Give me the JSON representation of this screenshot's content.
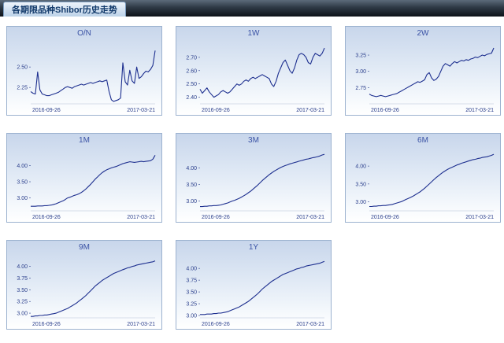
{
  "header": {
    "title": "各期限品种Shibor历史走势"
  },
  "colors": {
    "series": "#1d2f8f",
    "tick": "#2b3f8c",
    "title": "#3b53a5"
  },
  "chart_data": [
    {
      "type": "line",
      "title": "O/N",
      "ylim": [
        2.05,
        2.78
      ],
      "y_ticks": [
        2.25,
        2.5
      ],
      "x_labels": [
        "2016-09-26",
        "2017-03-21"
      ],
      "values": [
        2.2,
        2.18,
        2.17,
        2.44,
        2.22,
        2.17,
        2.16,
        2.15,
        2.15,
        2.16,
        2.17,
        2.18,
        2.19,
        2.21,
        2.23,
        2.25,
        2.26,
        2.25,
        2.24,
        2.26,
        2.27,
        2.28,
        2.29,
        2.28,
        2.29,
        2.3,
        2.31,
        2.3,
        2.31,
        2.32,
        2.33,
        2.32,
        2.33,
        2.34,
        2.2,
        2.1,
        2.08,
        2.09,
        2.1,
        2.12,
        2.55,
        2.32,
        2.28,
        2.46,
        2.33,
        2.3,
        2.5,
        2.36,
        2.38,
        2.42,
        2.45,
        2.44,
        2.47,
        2.52,
        2.7
      ]
    },
    {
      "type": "line",
      "title": "1W",
      "ylim": [
        2.35,
        2.8
      ],
      "y_ticks": [
        2.4,
        2.5,
        2.6,
        2.7
      ],
      "x_labels": [
        "2016-09-26",
        "2017-03-21"
      ],
      "values": [
        2.46,
        2.43,
        2.45,
        2.47,
        2.44,
        2.42,
        2.4,
        2.41,
        2.42,
        2.44,
        2.45,
        2.44,
        2.43,
        2.44,
        2.46,
        2.48,
        2.5,
        2.49,
        2.5,
        2.52,
        2.53,
        2.52,
        2.54,
        2.55,
        2.54,
        2.55,
        2.56,
        2.57,
        2.56,
        2.55,
        2.54,
        2.5,
        2.48,
        2.52,
        2.58,
        2.62,
        2.66,
        2.68,
        2.64,
        2.6,
        2.58,
        2.62,
        2.68,
        2.72,
        2.73,
        2.72,
        2.7,
        2.66,
        2.65,
        2.7,
        2.73,
        2.72,
        2.71,
        2.73,
        2.77
      ]
    },
    {
      "type": "line",
      "title": "2W",
      "ylim": [
        2.5,
        3.42
      ],
      "y_ticks": [
        2.75,
        3.0,
        3.25
      ],
      "x_labels": [
        "2016-09-26",
        "2017-03-21"
      ],
      "values": [
        2.65,
        2.63,
        2.62,
        2.61,
        2.62,
        2.63,
        2.62,
        2.61,
        2.62,
        2.63,
        2.64,
        2.65,
        2.66,
        2.68,
        2.7,
        2.72,
        2.74,
        2.76,
        2.78,
        2.8,
        2.82,
        2.84,
        2.83,
        2.85,
        2.87,
        2.95,
        2.98,
        2.9,
        2.86,
        2.88,
        2.92,
        3.0,
        3.08,
        3.12,
        3.1,
        3.08,
        3.12,
        3.15,
        3.13,
        3.15,
        3.17,
        3.16,
        3.18,
        3.17,
        3.19,
        3.2,
        3.22,
        3.21,
        3.23,
        3.25,
        3.24,
        3.26,
        3.27,
        3.28,
        3.36
      ]
    },
    {
      "type": "line",
      "title": "1M",
      "ylim": [
        2.6,
        4.45
      ],
      "y_ticks": [
        3.0,
        3.5,
        4.0
      ],
      "x_labels": [
        "2016-09-26",
        "2017-03-21"
      ],
      "values": [
        2.74,
        2.74,
        2.74,
        2.75,
        2.75,
        2.75,
        2.76,
        2.76,
        2.77,
        2.78,
        2.8,
        2.82,
        2.85,
        2.88,
        2.91,
        2.95,
        3.0,
        3.02,
        3.05,
        3.08,
        3.1,
        3.13,
        3.17,
        3.22,
        3.28,
        3.35,
        3.42,
        3.5,
        3.58,
        3.65,
        3.72,
        3.78,
        3.83,
        3.87,
        3.9,
        3.93,
        3.95,
        3.97,
        4.0,
        4.03,
        4.06,
        4.08,
        4.1,
        4.12,
        4.11,
        4.1,
        4.11,
        4.12,
        4.13,
        4.12,
        4.13,
        4.14,
        4.15,
        4.2,
        4.32
      ]
    },
    {
      "type": "line",
      "title": "3M",
      "ylim": [
        2.7,
        4.52
      ],
      "y_ticks": [
        3.0,
        3.5,
        4.0
      ],
      "x_labels": [
        "2016-09-26",
        "2017-03-21"
      ],
      "values": [
        2.83,
        2.83,
        2.84,
        2.84,
        2.85,
        2.85,
        2.86,
        2.86,
        2.87,
        2.88,
        2.9,
        2.92,
        2.94,
        2.97,
        3.0,
        3.02,
        3.05,
        3.08,
        3.12,
        3.16,
        3.2,
        3.25,
        3.3,
        3.36,
        3.42,
        3.48,
        3.55,
        3.62,
        3.68,
        3.74,
        3.8,
        3.85,
        3.9,
        3.94,
        3.98,
        4.02,
        4.05,
        4.08,
        4.1,
        4.13,
        4.15,
        4.17,
        4.19,
        4.21,
        4.23,
        4.25,
        4.27,
        4.28,
        4.3,
        4.32,
        4.33,
        4.35,
        4.37,
        4.4,
        4.42
      ]
    },
    {
      "type": "line",
      "title": "6M",
      "ylim": [
        2.75,
        4.42
      ],
      "y_ticks": [
        3.0,
        3.5,
        4.0
      ],
      "x_labels": [
        "2016-09-26",
        "2017-03-21"
      ],
      "values": [
        2.87,
        2.87,
        2.88,
        2.88,
        2.89,
        2.89,
        2.9,
        2.9,
        2.91,
        2.92,
        2.93,
        2.95,
        2.97,
        2.99,
        3.01,
        3.04,
        3.07,
        3.1,
        3.13,
        3.16,
        3.2,
        3.24,
        3.28,
        3.33,
        3.38,
        3.44,
        3.5,
        3.56,
        3.62,
        3.68,
        3.73,
        3.78,
        3.83,
        3.87,
        3.91,
        3.94,
        3.97,
        4.0,
        4.03,
        4.05,
        4.08,
        4.1,
        4.12,
        4.14,
        4.16,
        4.18,
        4.19,
        4.21,
        4.22,
        4.24,
        4.25,
        4.26,
        4.28,
        4.3,
        4.33
      ]
    },
    {
      "type": "line",
      "title": "9M",
      "ylim": [
        2.9,
        4.18
      ],
      "y_ticks": [
        3.0,
        3.25,
        3.5,
        3.75,
        4.0
      ],
      "x_labels": [
        "2016-09-26",
        "2017-03-21"
      ],
      "values": [
        2.93,
        2.93,
        2.94,
        2.94,
        2.95,
        2.95,
        2.96,
        2.96,
        2.97,
        2.98,
        2.99,
        3.0,
        3.02,
        3.04,
        3.06,
        3.08,
        3.1,
        3.13,
        3.16,
        3.19,
        3.22,
        3.26,
        3.3,
        3.34,
        3.38,
        3.43,
        3.48,
        3.53,
        3.58,
        3.62,
        3.66,
        3.7,
        3.73,
        3.76,
        3.79,
        3.82,
        3.85,
        3.87,
        3.89,
        3.91,
        3.93,
        3.95,
        3.97,
        3.98,
        4.0,
        4.01,
        4.03,
        4.04,
        4.05,
        4.06,
        4.07,
        4.08,
        4.09,
        4.1,
        4.12
      ]
    },
    {
      "type": "line",
      "title": "1Y",
      "ylim": [
        2.95,
        4.22
      ],
      "y_ticks": [
        3.0,
        3.25,
        3.5,
        3.75,
        4.0
      ],
      "x_labels": [
        "2016-09-26",
        "2017-03-21"
      ],
      "values": [
        3.02,
        3.02,
        3.02,
        3.03,
        3.03,
        3.03,
        3.04,
        3.04,
        3.05,
        3.05,
        3.06,
        3.07,
        3.08,
        3.1,
        3.12,
        3.14,
        3.16,
        3.18,
        3.21,
        3.24,
        3.27,
        3.3,
        3.34,
        3.38,
        3.42,
        3.46,
        3.51,
        3.56,
        3.6,
        3.64,
        3.68,
        3.72,
        3.75,
        3.78,
        3.81,
        3.84,
        3.87,
        3.89,
        3.91,
        3.93,
        3.95,
        3.97,
        3.99,
        4.0,
        4.02,
        4.03,
        4.05,
        4.06,
        4.07,
        4.08,
        4.09,
        4.1,
        4.11,
        4.13,
        4.15
      ]
    }
  ]
}
